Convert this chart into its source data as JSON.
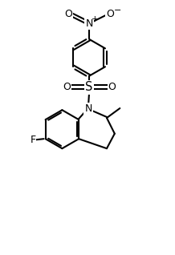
{
  "bg_color": "#ffffff",
  "line_color": "#000000",
  "line_width": 1.5,
  "font_size": 8.5,
  "figsize": [
    2.18,
    3.18
  ],
  "dpi": 100,
  "xlim": [
    0,
    10
  ],
  "ylim": [
    0,
    14.5
  ]
}
